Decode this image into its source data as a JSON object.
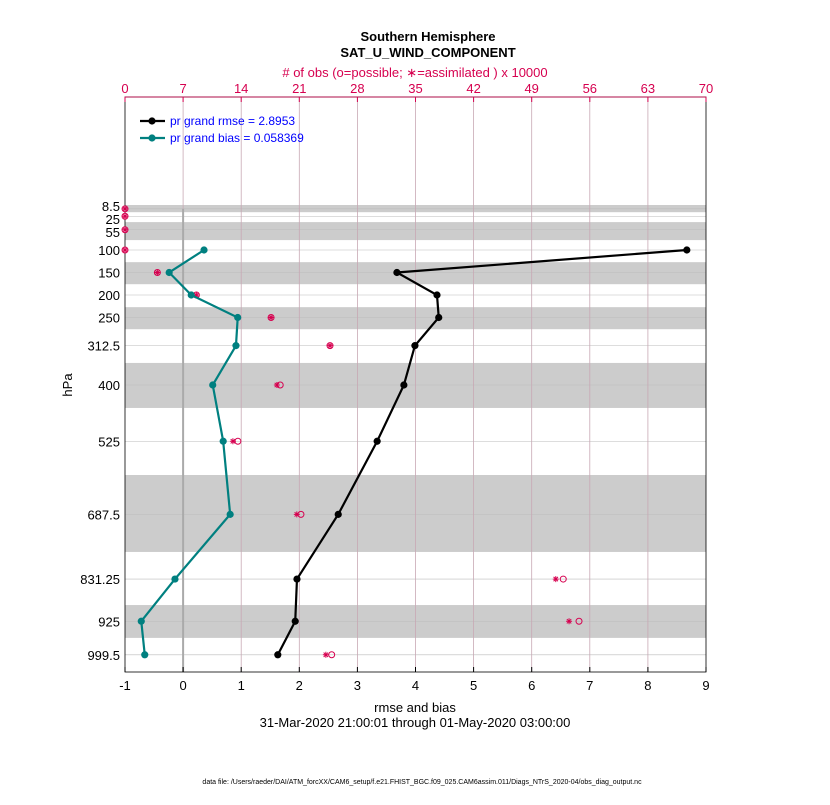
{
  "chart_data": {
    "type": "line",
    "title": "Southern Hemisphere",
    "subtitle": "SAT_U_WIND_COMPONENT",
    "top_axis_label": "# of obs (o=possible; ∗=assimilated ) x 10000",
    "xlabel": "rmse and bias",
    "ylabel": "hPa",
    "date_range": "31-Mar-2020 21:00:01 through 01-May-2020 03:00:00",
    "footer": "data file: /Users/raeder/DAI/ATM_forcXX/CAM6_setup/f.e21.FHIST_BGC.f09_025.CAM6assim.011/Diags_NTrS_2020-04/obs_diag_output.nc",
    "xlim": [
      -1,
      9
    ],
    "x_ticks": [
      "-1",
      "0",
      "1",
      "2",
      "3",
      "4",
      "5",
      "6",
      "7",
      "8",
      "9"
    ],
    "top_xlim": [
      0,
      70
    ],
    "top_ticks": [
      "0",
      "7",
      "14",
      "21",
      "28",
      "35",
      "42",
      "49",
      "56",
      "63",
      "70"
    ],
    "y_reversed": true,
    "levels": [
      8.5,
      25,
      55,
      100,
      150,
      200,
      250,
      312.5,
      400,
      525,
      687.5,
      831.25,
      925,
      999.5
    ],
    "level_labels": [
      "8.5",
      "25",
      "55",
      "100",
      "150",
      "200",
      "250",
      "312.5",
      "400",
      "525",
      "687.5",
      "831.25",
      "925",
      "999.5"
    ],
    "shaded_layers": [
      [
        0,
        16
      ],
      [
        38,
        78
      ],
      [
        127,
        176
      ],
      [
        227,
        276
      ],
      [
        351,
        451
      ],
      [
        600,
        771
      ],
      [
        889,
        962
      ]
    ],
    "grid": true,
    "legend_position": "top-left",
    "series": [
      {
        "name": "pr grand rmse = 2.8953",
        "color": "#000000",
        "values": [
          null,
          null,
          null,
          8.67,
          3.68,
          4.37,
          4.4,
          3.99,
          3.8,
          3.34,
          2.67,
          1.96,
          1.93,
          1.63
        ]
      },
      {
        "name": "pr grand bias = 0.058369",
        "color": "#008080",
        "values": [
          null,
          null,
          null,
          0.36,
          -0.24,
          0.14,
          0.94,
          0.91,
          0.51,
          0.69,
          0.81,
          -0.14,
          -0.72,
          -0.66
        ]
      }
    ],
    "obs_possible": [
      0,
      0,
      0,
      0,
      3.9,
      8.6,
      17.6,
      24.7,
      18.7,
      13.6,
      21.2,
      52.8,
      54.7,
      24.9
    ],
    "obs_assimilated": [
      0,
      0,
      0,
      0,
      3.9,
      8.6,
      17.6,
      24.7,
      18.3,
      13.0,
      20.7,
      51.9,
      53.5,
      24.2
    ],
    "colors": {
      "obs": "#d6004f",
      "legend_text": "#0000ff",
      "shade": "#cccccc",
      "zero_line": "#aaaaaa"
    }
  }
}
